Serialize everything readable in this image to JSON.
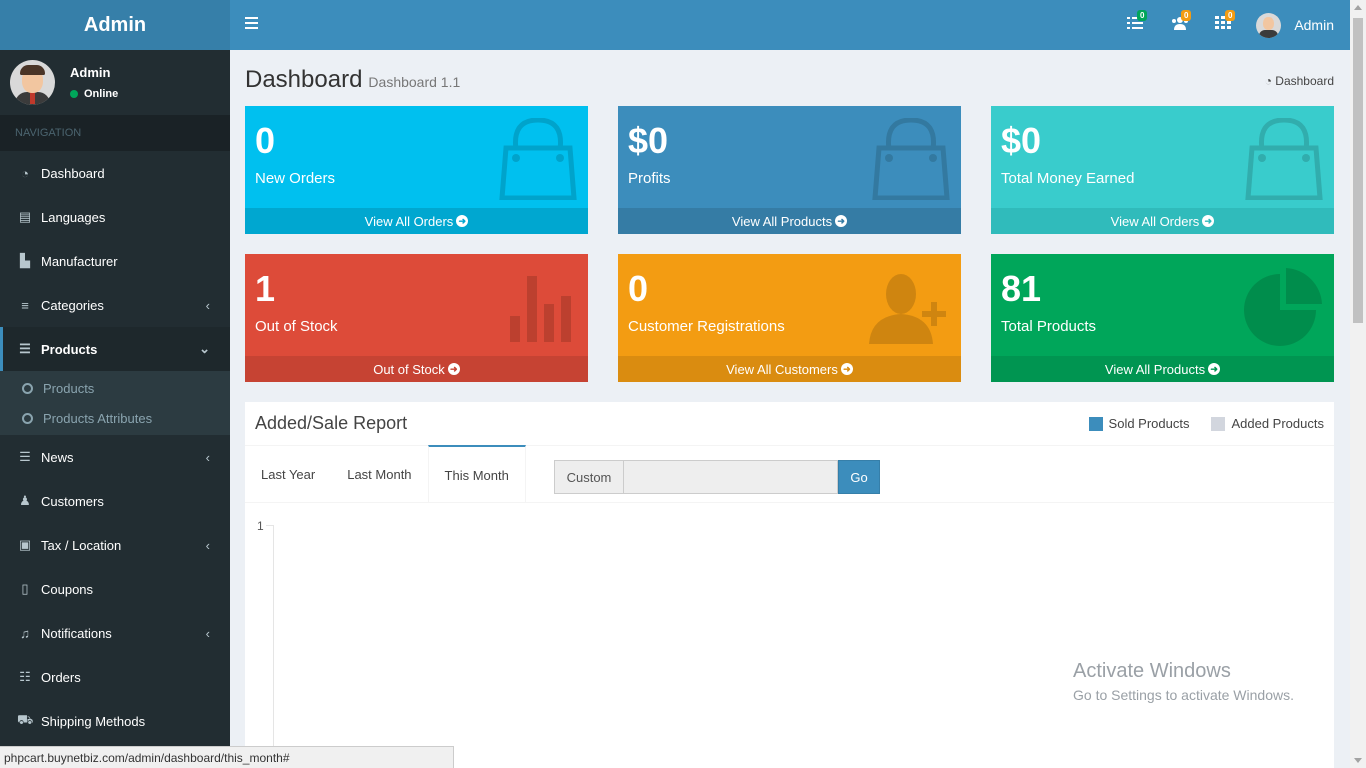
{
  "app": {
    "logo": "Admin"
  },
  "user_panel": {
    "name": "Admin",
    "status": "Online"
  },
  "nav": {
    "header": "NAVIGATION",
    "items": [
      {
        "label": "Dashboard",
        "icon": "dashboard-icon"
      },
      {
        "label": "Languages",
        "icon": "language-icon"
      },
      {
        "label": "Manufacturer",
        "icon": "industry-icon"
      },
      {
        "label": "Categories",
        "icon": "bars-icon"
      },
      {
        "label": "Products",
        "icon": "database-icon"
      },
      {
        "label": "News",
        "icon": "database-icon"
      },
      {
        "label": "Customers",
        "icon": "users-icon"
      },
      {
        "label": "Tax / Location",
        "icon": "money-icon"
      },
      {
        "label": "Coupons",
        "icon": "tablet-icon"
      },
      {
        "label": "Notifications",
        "icon": "bell-icon"
      },
      {
        "label": "Orders",
        "icon": "list-icon"
      },
      {
        "label": "Shipping Methods",
        "icon": "truck-icon"
      }
    ],
    "products_sub": [
      {
        "label": "Products"
      },
      {
        "label": "Products Attributes"
      }
    ]
  },
  "topbar": {
    "badges": [
      "0",
      "0",
      "0"
    ],
    "user_name": "Admin",
    "badge_colors": [
      "#00a65a",
      "#f39c12",
      "#f39c12"
    ]
  },
  "page": {
    "title": "Dashboard",
    "subtitle": "Dashboard 1.1",
    "breadcrumb": "Dashboard"
  },
  "boxes": [
    {
      "value": "0",
      "label": "New Orders",
      "link": "View All Orders",
      "color": "#00c0ef",
      "foot": "#00a7d0"
    },
    {
      "value": "$0",
      "label": "Profits",
      "link": "View All Products",
      "color": "#3c8dbc",
      "foot": "#357ca5"
    },
    {
      "value": "$0",
      "label": "Total Money Earned",
      "link": "View All Orders",
      "color": "#39cccc",
      "foot": "#30bbbb"
    },
    {
      "value": "1",
      "label": "Out of Stock",
      "link": "Out of Stock",
      "color": "#dd4b39",
      "foot": "#c64333"
    },
    {
      "value": "0",
      "label": "Customer Registrations",
      "link": "View All Customers",
      "color": "#f39c12",
      "foot": "#da8c10"
    },
    {
      "value": "81",
      "label": "Total Products",
      "link": "View All Products",
      "color": "#00a65a",
      "foot": "#009551"
    }
  ],
  "report": {
    "title": "Added/Sale Report",
    "legend": [
      {
        "label": "Sold Products",
        "color": "#3c8dbc"
      },
      {
        "label": "Added Products",
        "color": "#d2d6de"
      }
    ],
    "tabs": [
      "Last Year",
      "Last Month",
      "This Month"
    ],
    "active_tab": "This Month",
    "custom_label": "Custom",
    "custom_value": "",
    "go_label": "Go",
    "y_max_label": "1"
  },
  "watermark": {
    "line1": "Activate Windows",
    "line2": "Go to Settings to activate Windows."
  },
  "status_url": "phpcart.buynetbiz.com/admin/dashboard/this_month#"
}
